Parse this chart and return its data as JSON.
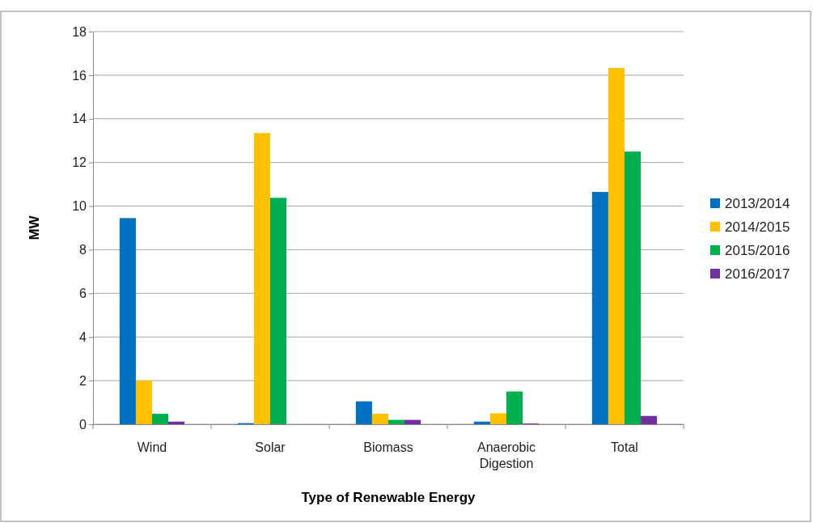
{
  "chart_data": {
    "type": "bar",
    "xlabel": "Type of Renewable Energy",
    "ylabel": "MW",
    "categories": [
      "Wind",
      "Solar",
      "Biomass",
      "Anaerobic Digestion",
      "Total"
    ],
    "series": [
      {
        "name": "2013/2014",
        "color": "#0070c0",
        "values": [
          9.45,
          0.05,
          1.05,
          0.12,
          10.65
        ]
      },
      {
        "name": "2014/2015",
        "color": "#ffc000",
        "values": [
          2.0,
          13.35,
          0.48,
          0.5,
          16.33
        ]
      },
      {
        "name": "2015/2016",
        "color": "#00b050",
        "values": [
          0.48,
          10.38,
          0.2,
          1.5,
          12.5
        ]
      },
      {
        "name": "2016/2017",
        "color": "#7030a0",
        "values": [
          0.12,
          0,
          0.2,
          0.03,
          0.38
        ]
      }
    ],
    "ylim": [
      0,
      18
    ],
    "yticks": [
      0,
      2,
      4,
      6,
      8,
      10,
      12,
      14,
      16,
      18
    ],
    "grid": "y",
    "legend": "right"
  }
}
